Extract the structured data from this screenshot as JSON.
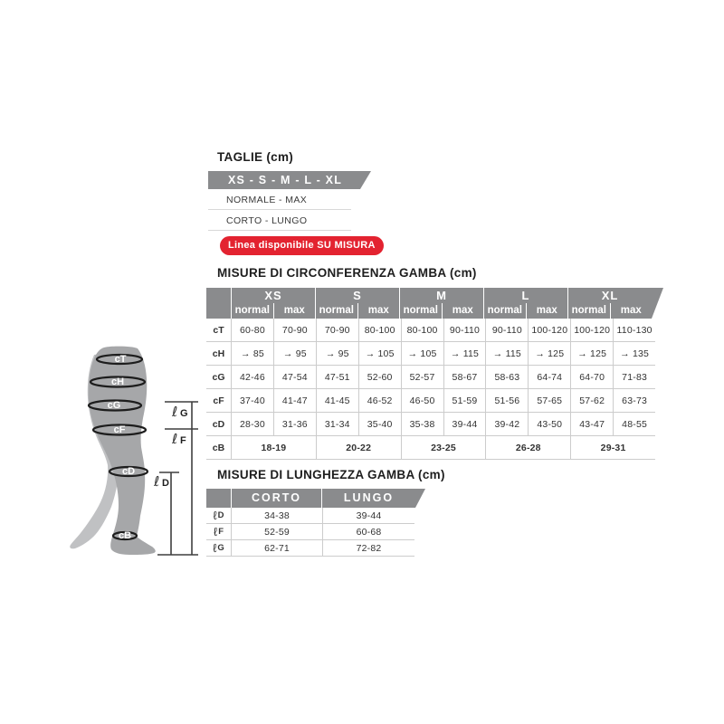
{
  "colors": {
    "header_gray": "#8a8b8d",
    "accent_red": "#e32330",
    "leg_front_gray": "#a6a7a9",
    "leg_back_gray": "#c0c1c3",
    "band_black": "#1d1d1d",
    "line_gray": "#cccccc",
    "measure_line": "#3f3f3f",
    "text_dark": "#323232"
  },
  "taglie_section": {
    "title": "TAGLIE (cm)",
    "sizes_bar_label": "XS - S - M - L - XL",
    "variant_rows": [
      "NORMALE - MAX",
      "CORTO - LUNGO"
    ],
    "custom_line_badge": "Linea disponibile SU MISURA"
  },
  "leg_diagram": {
    "circumference_labels": [
      "cT",
      "cH",
      "cG",
      "cF",
      "cD",
      "cB"
    ],
    "length_labels": [
      {
        "symbol": "ℓ",
        "letter": "G"
      },
      {
        "symbol": "ℓ",
        "letter": "F"
      },
      {
        "symbol": "ℓ",
        "letter": "D"
      }
    ]
  },
  "circumference_table": {
    "title": "MISURE DI CIRCONFERENZA GAMBA (cm)",
    "sizes": [
      "XS",
      "S",
      "M",
      "L",
      "XL"
    ],
    "sub_columns": [
      "normal",
      "max"
    ],
    "rows": [
      {
        "label": "cT",
        "values": [
          "60-80",
          "70-90",
          "70-90",
          "80-100",
          "80-100",
          "90-110",
          "90-110",
          "100-120",
          "100-120",
          "110-130"
        ]
      },
      {
        "label": "cH",
        "values": [
          "→ 85",
          "→ 95",
          "→ 95",
          "→ 105",
          "→ 105",
          "→ 115",
          "→ 115",
          "→ 125",
          "→ 125",
          "→ 135"
        ]
      },
      {
        "label": "cG",
        "values": [
          "42-46",
          "47-54",
          "47-51",
          "52-60",
          "52-57",
          "58-67",
          "58-63",
          "64-74",
          "64-70",
          "71-83"
        ]
      },
      {
        "label": "cF",
        "values": [
          "37-40",
          "41-47",
          "41-45",
          "46-52",
          "46-50",
          "51-59",
          "51-56",
          "57-65",
          "57-62",
          "63-73"
        ]
      },
      {
        "label": "cD",
        "values": [
          "28-30",
          "31-36",
          "31-34",
          "35-40",
          "35-38",
          "39-44",
          "39-42",
          "43-50",
          "43-47",
          "48-55"
        ]
      }
    ],
    "span_row": {
      "label": "cB",
      "values": [
        "18-19",
        "20-22",
        "23-25",
        "26-28",
        "29-31"
      ]
    }
  },
  "length_table": {
    "title": "MISURE DI LUNGHEZZA GAMBA (cm)",
    "columns": [
      "CORTO",
      "LUNGO"
    ],
    "rows": [
      {
        "label": {
          "symbol": "ℓ",
          "letter": "D"
        },
        "values": [
          "34-38",
          "39-44"
        ]
      },
      {
        "label": {
          "symbol": "ℓ",
          "letter": "F"
        },
        "values": [
          "52-59",
          "60-68"
        ]
      },
      {
        "label": {
          "symbol": "ℓ",
          "letter": "G"
        },
        "values": [
          "62-71",
          "72-82"
        ]
      }
    ]
  }
}
